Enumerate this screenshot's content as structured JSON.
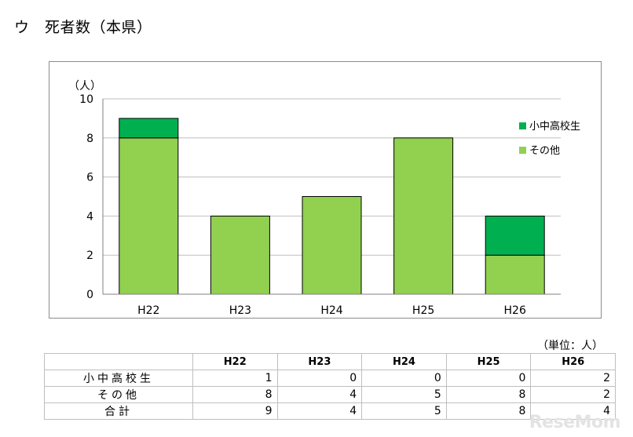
{
  "page": {
    "title": "ウ　死者数（本県）",
    "unit_note": "（単位：人）",
    "watermark": "ReseMom"
  },
  "chart_data": {
    "type": "bar",
    "stacked": true,
    "categories": [
      "H22",
      "H23",
      "H24",
      "H25",
      "H26"
    ],
    "series": [
      {
        "name": "その他",
        "values": [
          8,
          4,
          5,
          8,
          2
        ],
        "color": "#92d050"
      },
      {
        "name": "小中高校生",
        "values": [
          1,
          0,
          0,
          0,
          2
        ],
        "color": "#00b050"
      }
    ],
    "ylabel": "（人）",
    "ylim": [
      0,
      10
    ],
    "yticks": [
      0,
      2,
      4,
      6,
      8,
      10
    ],
    "grid": true,
    "legend": "right"
  },
  "table": {
    "headers": [
      "",
      "H22",
      "H23",
      "H24",
      "H25",
      "H26"
    ],
    "rows": [
      {
        "label": "小中高校生",
        "values": [
          "1",
          "0",
          "0",
          "0",
          "2"
        ]
      },
      {
        "label": "その他",
        "values": [
          "8",
          "4",
          "5",
          "8",
          "2"
        ]
      },
      {
        "label": "合計",
        "values": [
          "9",
          "4",
          "5",
          "8",
          "4"
        ]
      }
    ]
  },
  "colors": {
    "other": "#92d050",
    "students": "#00b050",
    "grid": "#bfbfbf"
  }
}
